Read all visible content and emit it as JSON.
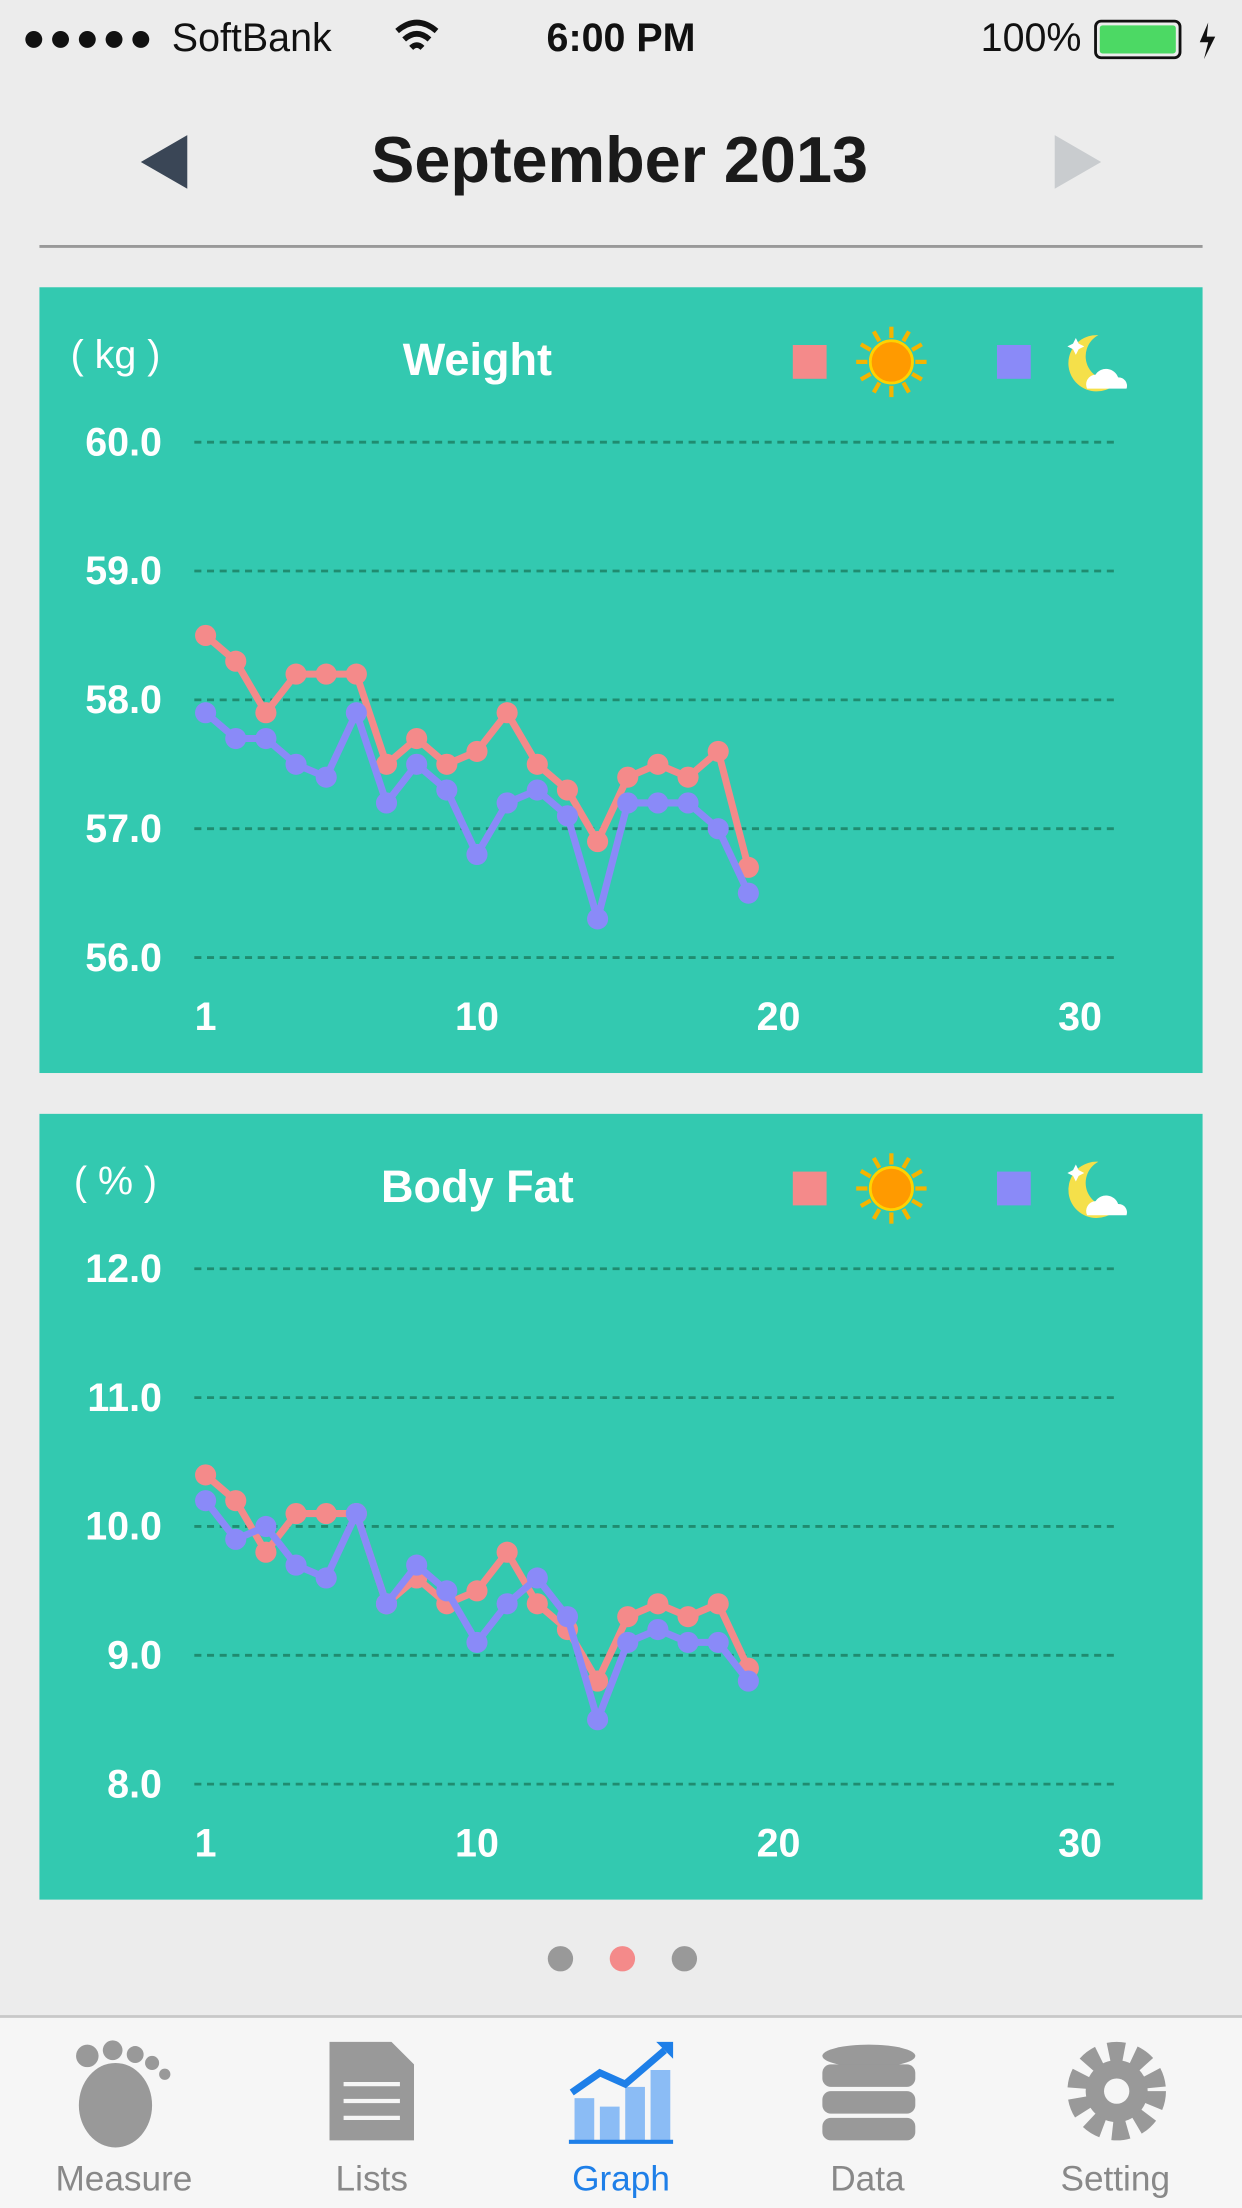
{
  "status_bar": {
    "carrier": "SoftBank",
    "time": "6:00 PM",
    "battery": "100%"
  },
  "header": {
    "title": "September 2013"
  },
  "chart_data": [
    {
      "type": "line",
      "title": "Weight",
      "unit_label": "( kg )",
      "x": [
        1,
        2,
        3,
        4,
        5,
        6,
        7,
        8,
        9,
        10,
        11,
        12,
        13,
        14,
        15,
        16,
        17,
        18,
        19
      ],
      "xlim": [
        1,
        30
      ],
      "xticks": [
        1,
        10,
        20,
        30
      ],
      "ylim": [
        56,
        60
      ],
      "yticks": [
        {
          "value": 56,
          "label": "56.0"
        },
        {
          "value": 57,
          "label": "57.0"
        },
        {
          "value": 58,
          "label": "58.0"
        },
        {
          "value": 59,
          "label": "59.0"
        },
        {
          "value": 60,
          "label": "60.0"
        }
      ],
      "grid": true,
      "series": [
        {
          "color": "#f48a8a",
          "values": [
            58.5,
            58.3,
            57.9,
            58.2,
            58.2,
            58.2,
            57.5,
            57.7,
            57.5,
            57.6,
            57.9,
            57.5,
            57.3,
            56.9,
            57.4,
            57.5,
            57.4,
            57.6,
            56.7
          ]
        },
        {
          "color": "#8a8af8",
          "values": [
            57.9,
            57.7,
            57.7,
            57.5,
            57.4,
            57.9,
            57.2,
            57.5,
            57.3,
            56.8,
            57.2,
            57.3,
            57.1,
            56.3,
            57.2,
            57.2,
            57.2,
            57.0,
            56.5
          ]
        }
      ]
    },
    {
      "type": "line",
      "title": "Body Fat",
      "unit_label": "( % )",
      "x": [
        1,
        2,
        3,
        4,
        5,
        6,
        7,
        8,
        9,
        10,
        11,
        12,
        13,
        14,
        15,
        16,
        17,
        18,
        19
      ],
      "xlim": [
        1,
        30
      ],
      "xticks": [
        1,
        10,
        20,
        30
      ],
      "ylim": [
        8,
        12
      ],
      "yticks": [
        {
          "value": 8,
          "label": "8.0"
        },
        {
          "value": 9,
          "label": "9.0"
        },
        {
          "value": 10,
          "label": "10.0"
        },
        {
          "value": 11,
          "label": "11.0"
        },
        {
          "value": 12,
          "label": "12.0"
        }
      ],
      "grid": true,
      "series": [
        {
          "color": "#f48a8a",
          "values": [
            10.4,
            10.2,
            9.8,
            10.1,
            10.1,
            10.1,
            9.4,
            9.6,
            9.4,
            9.5,
            9.8,
            9.4,
            9.2,
            8.8,
            9.3,
            9.4,
            9.3,
            9.4,
            8.9
          ]
        },
        {
          "color": "#8a8af8",
          "values": [
            10.2,
            9.9,
            10.0,
            9.7,
            9.6,
            10.1,
            9.4,
            9.7,
            9.5,
            9.1,
            9.4,
            9.6,
            9.3,
            8.5,
            9.1,
            9.2,
            9.1,
            9.1,
            8.8
          ]
        }
      ]
    }
  ],
  "tabs": [
    "Measure",
    "Lists",
    "Graph",
    "Data",
    "Setting"
  ]
}
